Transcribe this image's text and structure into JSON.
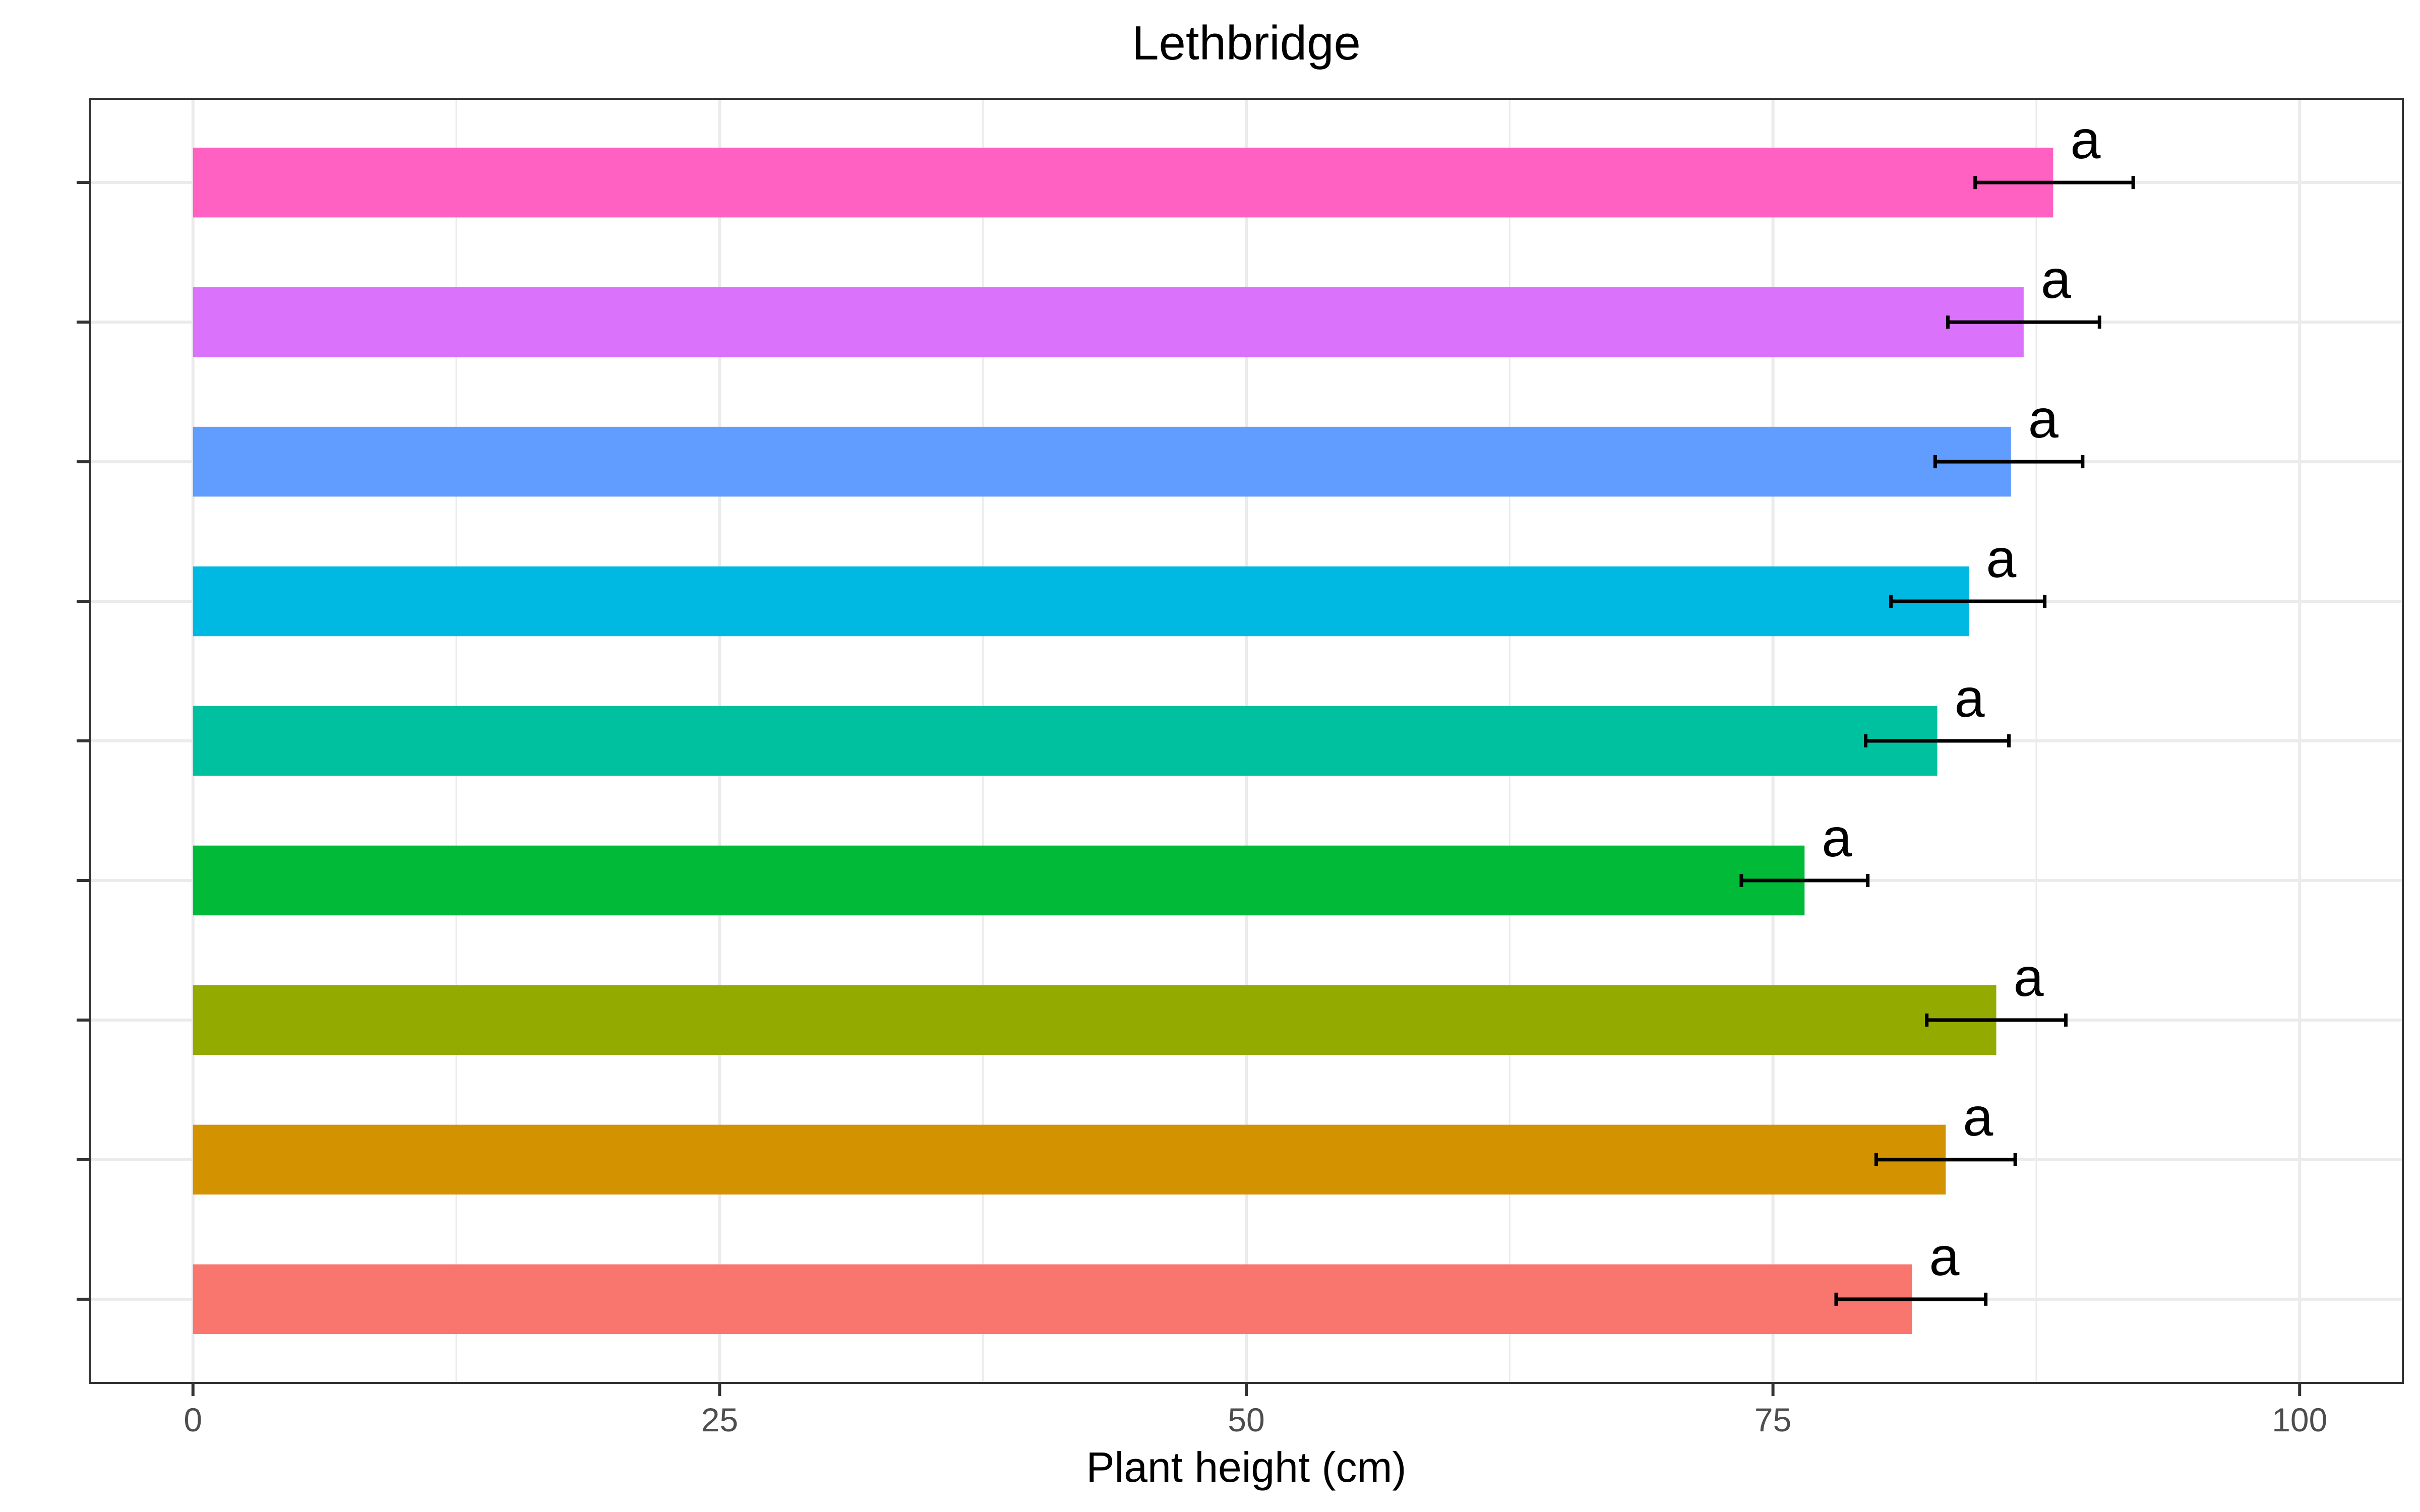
{
  "chart_data": {
    "type": "bar",
    "orientation": "horizontal",
    "title": "Lethbridge",
    "xlabel": "Plant height (cm)",
    "ylabel": "",
    "xlim": [
      -4.9,
      104.9
    ],
    "xticks": [
      0,
      25,
      50,
      75,
      100
    ],
    "xtick_labels": [
      "0",
      "25",
      "50",
      "75",
      "100"
    ],
    "grid": true,
    "legend": "none",
    "bars": [
      {
        "value": 81.6,
        "err_low": 78.0,
        "err_high": 85.1,
        "label": "a",
        "color": "#F8766D"
      },
      {
        "value": 83.2,
        "err_low": 79.9,
        "err_high": 86.5,
        "label": "a",
        "color": "#D39200"
      },
      {
        "value": 85.6,
        "err_low": 82.3,
        "err_high": 88.9,
        "label": "a",
        "color": "#93AA00"
      },
      {
        "value": 76.5,
        "err_low": 73.5,
        "err_high": 79.5,
        "label": "a",
        "color": "#00BA38"
      },
      {
        "value": 82.8,
        "err_low": 79.4,
        "err_high": 86.2,
        "label": "a",
        "color": "#00C19F"
      },
      {
        "value": 84.3,
        "err_low": 80.6,
        "err_high": 87.9,
        "label": "a",
        "color": "#00B9E3"
      },
      {
        "value": 86.3,
        "err_low": 82.7,
        "err_high": 89.7,
        "label": "a",
        "color": "#619CFF"
      },
      {
        "value": 86.9,
        "err_low": 83.3,
        "err_high": 90.5,
        "label": "a",
        "color": "#DB72FB"
      },
      {
        "value": 88.3,
        "err_low": 84.6,
        "err_high": 92.1,
        "label": "a",
        "color": "#FF61C3"
      }
    ]
  }
}
